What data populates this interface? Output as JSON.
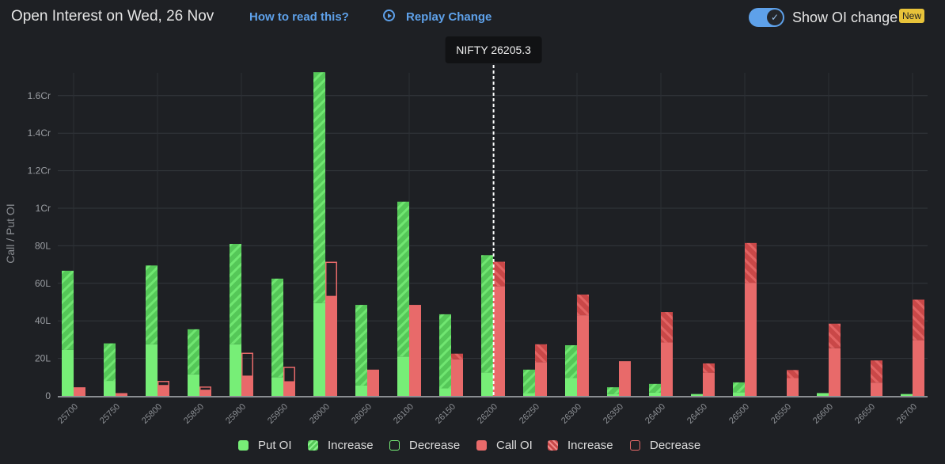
{
  "header": {
    "title": "Open Interest on Wed, 26 Nov",
    "how_to_read": "How to read this?",
    "replay": "Replay Change",
    "toggle_label": "Show OI change",
    "toggle_on": true,
    "badge": "New"
  },
  "colors": {
    "put": "#77ee77",
    "put_increase": "#55c758",
    "call": "#e86a6a",
    "call_increase": "#c94848",
    "accent": "#5ea1ea",
    "badge": "#e8c33a"
  },
  "chart_data": {
    "type": "bar",
    "units": "lakhs",
    "ylabel": "Call / Put OI",
    "ylim": [
      0,
      175
    ],
    "yticks": [
      {
        "value": 0,
        "label": "0"
      },
      {
        "value": 20,
        "label": "20L"
      },
      {
        "value": 40,
        "label": "40L"
      },
      {
        "value": 60,
        "label": "60L"
      },
      {
        "value": 80,
        "label": "80L"
      },
      {
        "value": 100,
        "label": "1Cr"
      },
      {
        "value": 120,
        "label": "1.2Cr"
      },
      {
        "value": 140,
        "label": "1.4Cr"
      },
      {
        "value": 160,
        "label": "1.6Cr"
      }
    ],
    "grid": true,
    "spot": {
      "label": "NIFTY 26205.3",
      "value": 26205.3
    },
    "categories": [
      "25700",
      "25750",
      "25800",
      "25850",
      "25900",
      "25950",
      "26000",
      "26050",
      "26100",
      "26150",
      "26200",
      "26250",
      "26300",
      "26350",
      "26400",
      "26450",
      "26500",
      "26550",
      "26600",
      "26650",
      "26700"
    ],
    "series": [
      {
        "name": "Put OI",
        "oi": [
          66.7,
          28,
          69.5,
          35.5,
          81,
          62.5,
          172.5,
          48.5,
          103.5,
          43.5,
          75,
          14,
          27,
          4.6,
          6.4,
          1,
          7.2,
          0,
          1.5,
          0,
          1
        ],
        "change": [
          42.2,
          20,
          42,
          24,
          53.5,
          52.5,
          123,
          43,
          82.5,
          39.5,
          62.5,
          12.5,
          17.5,
          3.6,
          4.7,
          0,
          5.2,
          0,
          0,
          0,
          0
        ]
      },
      {
        "name": "Call OI",
        "oi": [
          4.6,
          1.5,
          5.5,
          3,
          10.5,
          7.5,
          53,
          14,
          48.5,
          22.5,
          71.5,
          27.5,
          54,
          18.5,
          44.7,
          17.3,
          81.5,
          13.8,
          38.5,
          18.9,
          51.3
        ],
        "change": [
          0,
          0,
          -2.5,
          -2,
          -12.5,
          -8,
          -18.5,
          0,
          0,
          3,
          13,
          9.5,
          11,
          0,
          16.2,
          4.9,
          21.2,
          4.3,
          13.1,
          11.8,
          21.6
        ]
      }
    ],
    "legend": {
      "position": "bottom",
      "items": [
        "Put OI",
        "Increase",
        "Decrease",
        "Call OI",
        "Increase",
        "Decrease"
      ]
    }
  }
}
